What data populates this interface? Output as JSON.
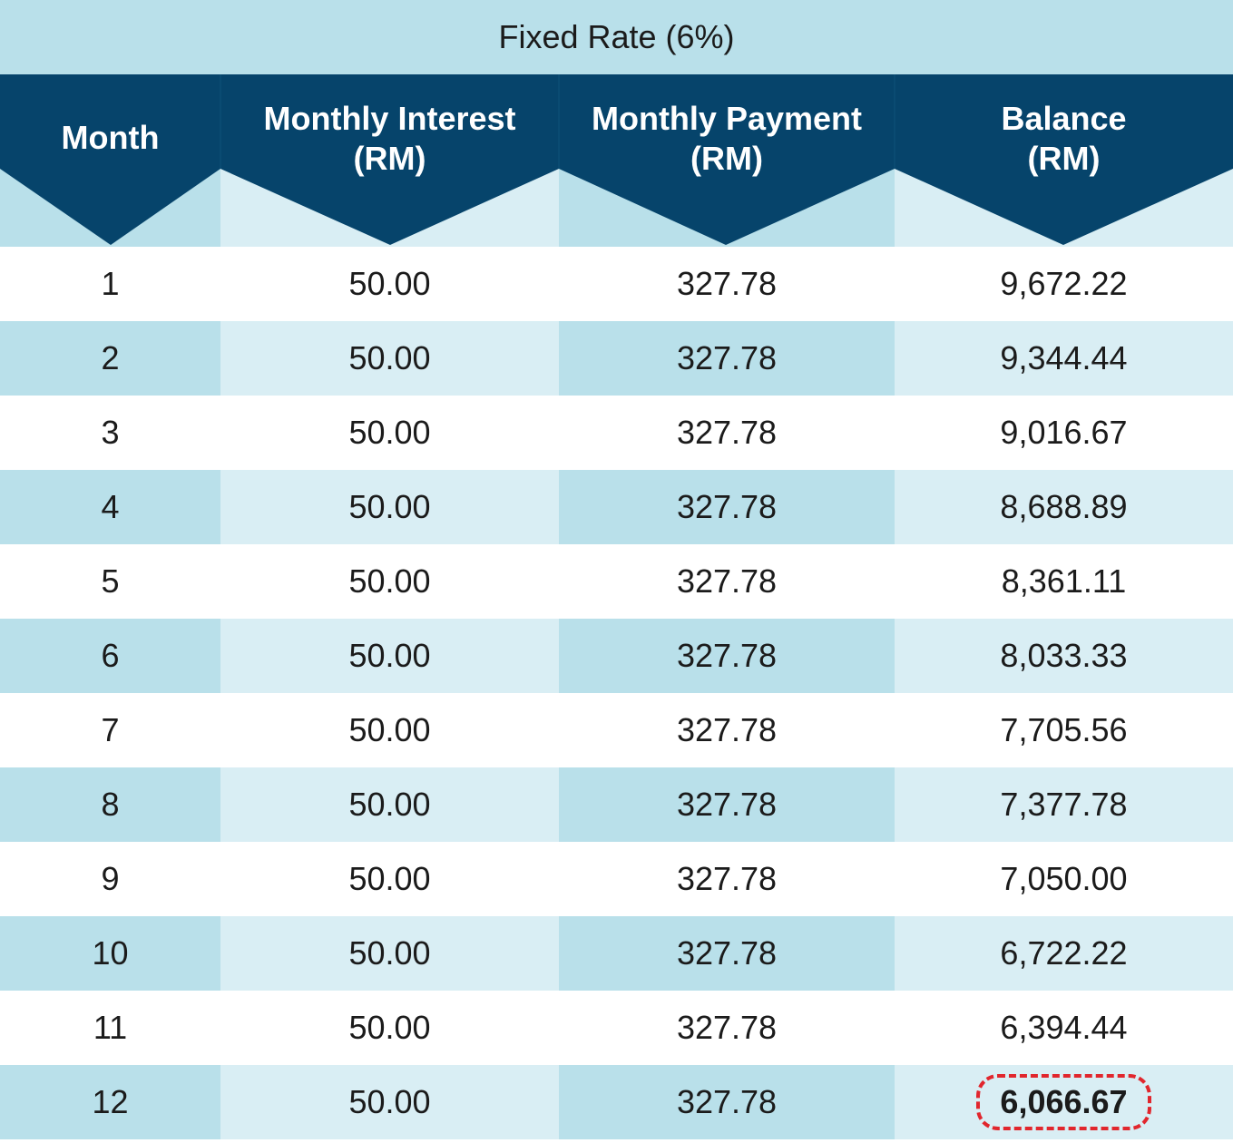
{
  "chart_data": {
    "type": "table",
    "title": "Fixed Rate (6%)",
    "columns": [
      [
        "Month"
      ],
      [
        "Monthly Interest",
        "(RM)"
      ],
      [
        "Monthly Payment",
        "(RM)"
      ],
      [
        "Balance",
        "(RM)"
      ]
    ],
    "rows": [
      [
        "1",
        "50.00",
        "327.78",
        "9,672.22"
      ],
      [
        "2",
        "50.00",
        "327.78",
        "9,344.44"
      ],
      [
        "3",
        "50.00",
        "327.78",
        "9,016.67"
      ],
      [
        "4",
        "50.00",
        "327.78",
        "8,688.89"
      ],
      [
        "5",
        "50.00",
        "327.78",
        "8,361.11"
      ],
      [
        "6",
        "50.00",
        "327.78",
        "8,033.33"
      ],
      [
        "7",
        "50.00",
        "327.78",
        "7,705.56"
      ],
      [
        "8",
        "50.00",
        "327.78",
        "7,377.78"
      ],
      [
        "9",
        "50.00",
        "327.78",
        "7,050.00"
      ],
      [
        "10",
        "50.00",
        "327.78",
        "6,722.22"
      ],
      [
        "11",
        "50.00",
        "327.78",
        "6,394.44"
      ],
      [
        "12",
        "50.00",
        "327.78",
        "6,066.67"
      ]
    ],
    "highlight": {
      "row": 11,
      "col": 3,
      "style": "red dashed rounded outline, bold"
    },
    "colors": {
      "header_dark": "#06446b",
      "light_blue": "#b9e0ea",
      "lighter_blue": "#d9eef4",
      "highlight_red": "#e1262d"
    }
  }
}
